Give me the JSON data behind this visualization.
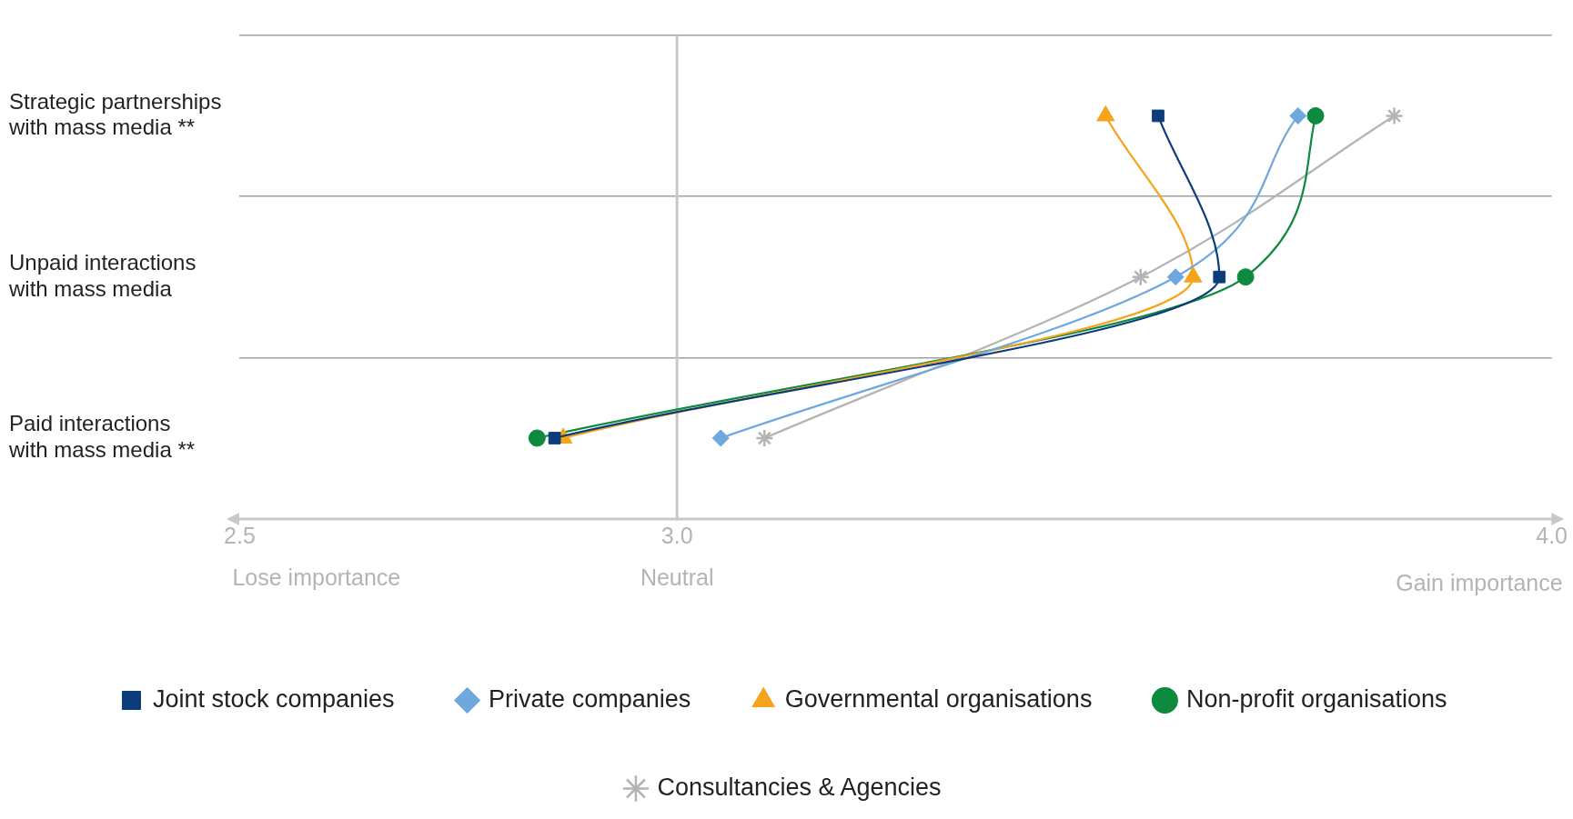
{
  "chart_data": {
    "type": "line",
    "orientation": "horizontal",
    "categories": [
      "Strategic partnerships with mass media **",
      "Unpaid interactions with mass media",
      "Paid interactions with mass media **"
    ],
    "series": [
      {
        "name": "Joint stock companies",
        "color": "#0b3d7c",
        "marker": "square",
        "values": [
          3.55,
          3.62,
          2.86
        ]
      },
      {
        "name": "Private companies",
        "color": "#6fa8dc",
        "marker": "diamond",
        "values": [
          3.71,
          3.57,
          3.05
        ]
      },
      {
        "name": "Governmental organisations",
        "color": "#f7a21b",
        "marker": "triangle",
        "values": [
          3.49,
          3.59,
          2.87
        ]
      },
      {
        "name": "Non-profit organisations",
        "color": "#0e8a3e",
        "marker": "circle",
        "values": [
          3.73,
          3.65,
          2.84
        ]
      },
      {
        "name": "Consultancies & Agencies",
        "color": "#b4b4b4",
        "marker": "cross",
        "values": [
          3.82,
          3.53,
          3.1
        ]
      }
    ],
    "xlim": [
      2.5,
      4.0
    ],
    "xticks": [
      {
        "value": 2.5,
        "label": "2.5"
      },
      {
        "value": 3,
        "label": "3.0"
      },
      {
        "value": 4,
        "label": "4.0"
      }
    ],
    "ref_lines": [
      {
        "axis": "x",
        "value": 3,
        "label": "Neutral",
        "color": "#c8c8c8"
      }
    ],
    "annotations": [
      "Lose importance",
      "Gain importance"
    ],
    "grid": "y",
    "legend": "bottom"
  }
}
